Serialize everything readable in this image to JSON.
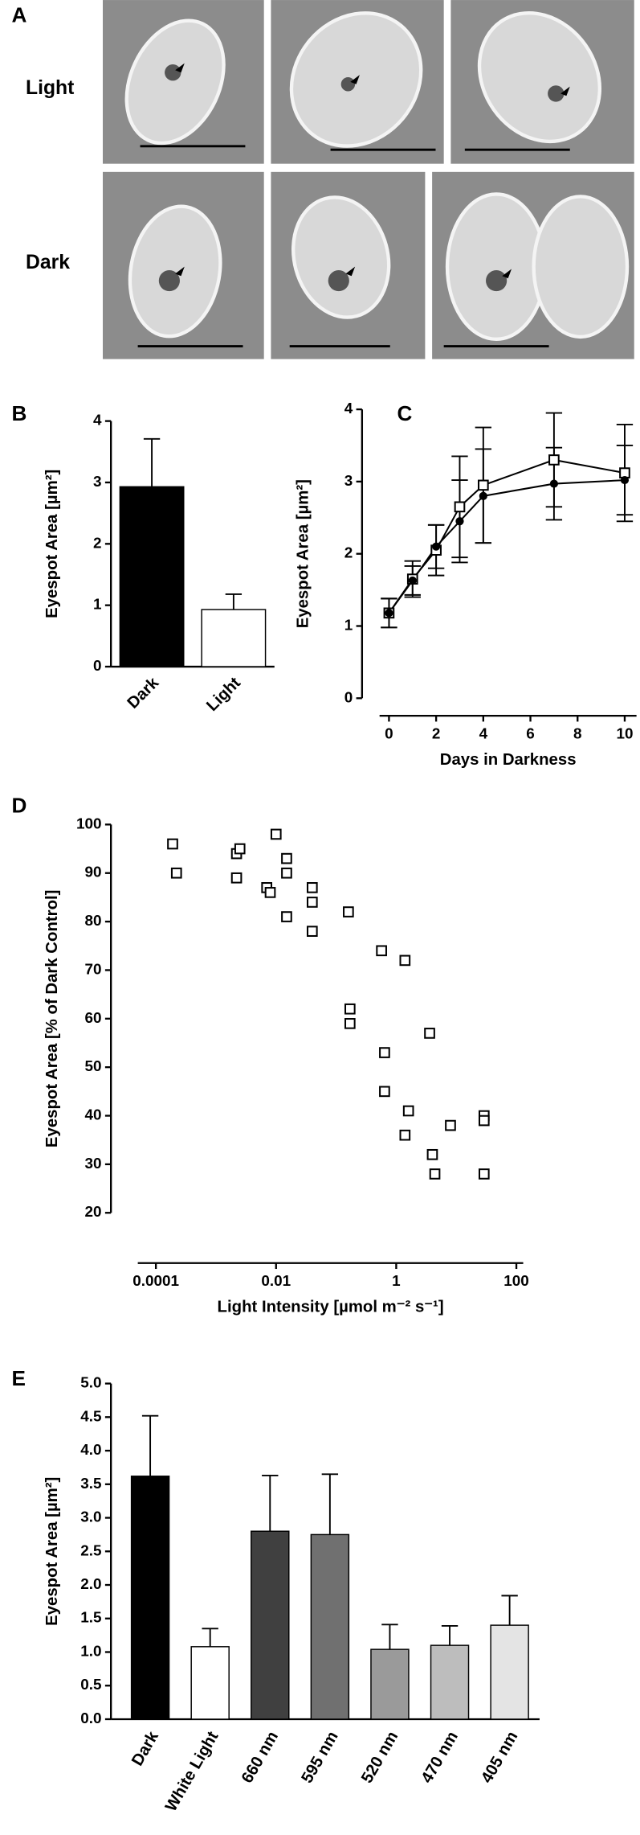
{
  "panel_a": {
    "panel_label": "A",
    "rows": [
      "Light",
      "Dark"
    ]
  },
  "chart_data": [
    {
      "type": "bar",
      "panel_label": "B",
      "ylabel": "Eyespot Area [µm²]",
      "categories": [
        "Dark",
        "Light"
      ],
      "values": [
        2.93,
        0.93
      ],
      "errors": [
        0.78,
        0.25
      ],
      "error_direction": "up",
      "colors": [
        "#000000",
        "#ffffff"
      ],
      "ylim": [
        0,
        4
      ],
      "yticks": [
        0,
        1,
        2,
        3,
        4
      ]
    },
    {
      "type": "line",
      "panel_label": "C",
      "ylabel": "Eyespot Area [µm²]",
      "xlabel": "Days in Darkness",
      "x": [
        0,
        1,
        2,
        3,
        4,
        7,
        10
      ],
      "series": [
        {
          "color": "#000000",
          "marker": "open-square",
          "values": [
            1.18,
            1.65,
            2.05,
            2.65,
            2.95,
            3.3,
            3.12
          ],
          "errors": [
            0.2,
            0.25,
            0.35,
            0.7,
            0.8,
            0.65,
            0.67
          ]
        },
        {
          "color": "#000000",
          "marker": "filled-circle",
          "values": [
            1.18,
            1.63,
            2.1,
            2.45,
            2.8,
            2.97,
            3.02
          ],
          "errors": [
            0.2,
            0.2,
            0.3,
            0.57,
            0.65,
            0.5,
            0.48
          ]
        }
      ],
      "error_direction": "both",
      "xlim": [
        -0.4,
        10.5
      ],
      "xticks": [
        0,
        2,
        4,
        6,
        8,
        10
      ],
      "ylim": [
        0,
        4
      ],
      "yticks": [
        0,
        1,
        2,
        3,
        4
      ]
    },
    {
      "type": "scatter",
      "panel_label": "D",
      "ylabel": "Eyespot Area [% of Dark Control]",
      "xlabel": "Light Intensity [µmol m⁻² s⁻¹]",
      "xscale": "log",
      "marker": "open-square",
      "color": "#000000",
      "x": [
        0.00019,
        0.00022,
        0.0022,
        0.0022,
        0.0025,
        0.007,
        0.008,
        0.01,
        0.015,
        0.015,
        0.015,
        0.04,
        0.04,
        0.04,
        0.16,
        0.17,
        0.17,
        0.57,
        0.64,
        0.64,
        1.4,
        1.6,
        1.4,
        3.6,
        4,
        4.4,
        8,
        29,
        29,
        29
      ],
      "y": [
        96,
        90,
        89,
        94,
        95,
        87,
        86,
        98,
        93,
        90,
        81,
        87,
        84,
        78,
        82,
        62,
        59,
        74,
        53,
        45,
        72,
        41,
        36,
        57,
        32,
        28,
        38,
        40,
        39,
        28
      ],
      "xlim": [
        5e-05,
        130
      ],
      "xticks": [
        0.0001,
        0.01,
        1,
        100
      ],
      "ylim": [
        20,
        100
      ],
      "yticks": [
        20,
        30,
        40,
        50,
        60,
        70,
        80,
        90,
        100
      ]
    },
    {
      "type": "bar",
      "panel_label": "E",
      "ylabel": "Eyespot Area [µm²]",
      "categories": [
        "Dark",
        "White Light",
        "660 nm",
        "595 nm",
        "520 nm",
        "470 nm",
        "405 nm"
      ],
      "values": [
        3.62,
        1.08,
        2.8,
        2.75,
        1.04,
        1.1,
        1.4
      ],
      "errors": [
        0.9,
        0.27,
        0.83,
        0.9,
        0.37,
        0.29,
        0.44
      ],
      "error_direction": "up",
      "colors": [
        "#000000",
        "#ffffff",
        "#404040",
        "#707070",
        "#9a9a9a",
        "#bdbdbd",
        "#e4e4e4"
      ],
      "ylim": [
        0,
        5
      ],
      "yticks": [
        {
          "value": 0,
          "label": "0.0"
        },
        {
          "value": 0.5,
          "label": "0.5"
        },
        {
          "value": 1,
          "label": "1.0"
        },
        {
          "value": 1.5,
          "label": "1.5"
        },
        {
          "value": 2,
          "label": "2.0"
        },
        {
          "value": 2.5,
          "label": "2.5"
        },
        {
          "value": 3,
          "label": "3.0"
        },
        {
          "value": 3.5,
          "label": "3.5"
        },
        {
          "value": 4,
          "label": "4.0"
        },
        {
          "value": 4.5,
          "label": "4.5"
        },
        {
          "value": 5,
          "label": "5.0"
        }
      ]
    }
  ]
}
